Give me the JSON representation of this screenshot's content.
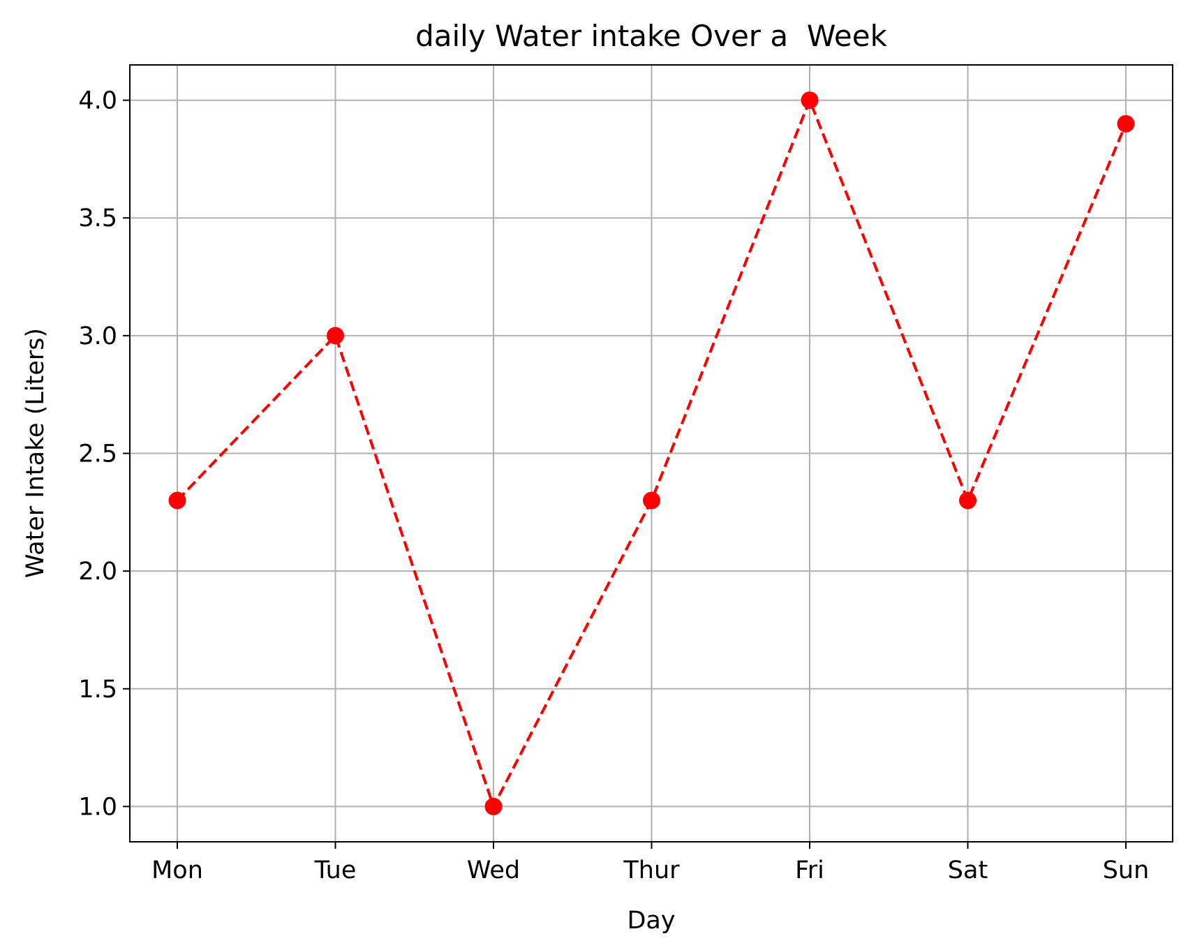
{
  "chart_data": {
    "type": "line",
    "title": "daily Water intake Over a  Week",
    "xlabel": "Day",
    "ylabel": "Water Intake (Liters)",
    "categories": [
      "Mon",
      "Tue",
      "Wed",
      "Thur",
      "Fri",
      "Sat",
      "Sun"
    ],
    "series": [
      {
        "values": [
          2.3,
          3.0,
          1.0,
          2.3,
          4.0,
          2.3,
          3.9
        ],
        "color": "#ff0000",
        "line_style": "dashed",
        "marker": "circle"
      }
    ],
    "ylim": [
      0.85,
      4.15
    ],
    "yticks": [
      "1.0",
      "1.5",
      "2.0",
      "2.5",
      "3.0",
      "3.5",
      "4.0"
    ],
    "grid": true,
    "legend": "none"
  }
}
